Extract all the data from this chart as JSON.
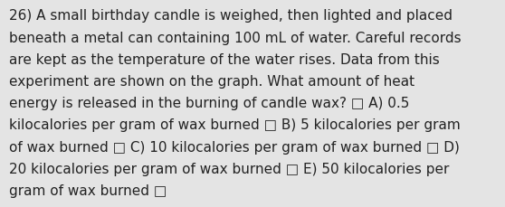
{
  "lines": [
    "26) A small birthday candle is weighed, then lighted and placed",
    "beneath a metal can containing 100 mL of water. Careful records",
    "are kept as the temperature of the water rises. Data from this",
    "experiment are shown on the graph. What amount of heat",
    "energy is released in the burning of candle wax? □ A) 0.5",
    "kilocalories per gram of wax burned □ B) 5 kilocalories per gram",
    "of wax burned □ C) 10 kilocalories per gram of wax burned □ D)",
    "20 kilocalories per gram of wax burned □ E) 50 kilocalories per",
    "gram of wax burned □"
  ],
  "background_color": "#e4e4e4",
  "text_color": "#222222",
  "font_size": 11.0,
  "fig_width": 5.58,
  "fig_height": 2.3,
  "dpi": 100
}
